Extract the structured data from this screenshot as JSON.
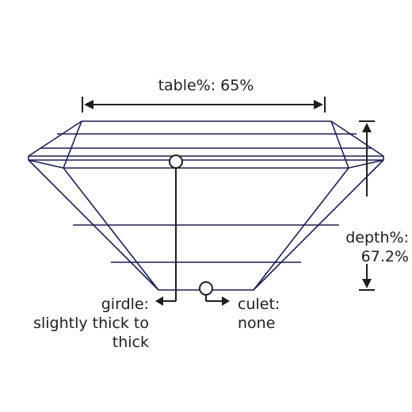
{
  "table": {
    "text": "table%: 65%"
  },
  "depth": {
    "line1": "depth%:",
    "line2": "67.2%"
  },
  "girdle": {
    "line1": "girdle:",
    "line2": "slightly thick to",
    "line3": "thick"
  },
  "culet": {
    "line1": "culet:",
    "line2": "none"
  },
  "colors": {
    "outline": "#1b1f4d",
    "annotation": "#1e1e1e"
  }
}
